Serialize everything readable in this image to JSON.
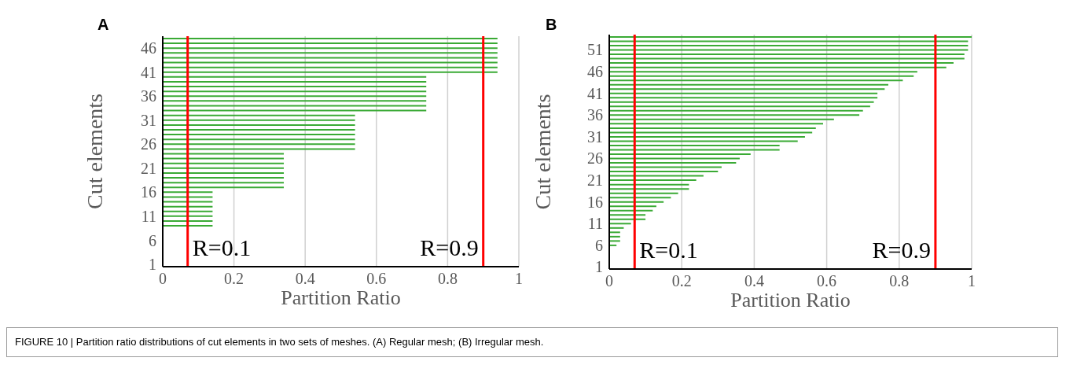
{
  "chart_data": [
    {
      "type": "bar",
      "orientation": "horizontal",
      "title": "A",
      "xlabel": "Partition Ratio",
      "ylabel": "Cut elements",
      "categories": [
        null,
        null,
        "46",
        null,
        null,
        null,
        null,
        "41",
        null,
        null,
        null,
        null,
        "36",
        null,
        null,
        null,
        null,
        "31",
        null,
        null,
        null,
        null,
        "26",
        null,
        null,
        null,
        null,
        "21",
        null,
        null,
        null,
        null,
        "16",
        null,
        null,
        null,
        null,
        "11",
        null,
        null,
        null,
        null,
        "6",
        null,
        null,
        null,
        null,
        "1"
      ],
      "values": [
        0.94,
        0.94,
        0.94,
        0.94,
        0.94,
        0.94,
        0.94,
        0.94,
        0.74,
        0.74,
        0.74,
        0.74,
        0.74,
        0.74,
        0.74,
        0.74,
        0.54,
        0.54,
        0.54,
        0.54,
        0.54,
        0.54,
        0.54,
        0.54,
        0.34,
        0.34,
        0.34,
        0.34,
        0.34,
        0.34,
        0.34,
        0.34,
        0.14,
        0.14,
        0.14,
        0.14,
        0.14,
        0.14,
        0.14,
        0.14,
        0,
        0,
        0,
        0,
        0,
        0,
        0,
        0
      ],
      "color": "#3aaa35",
      "xlim": [
        0,
        1
      ],
      "xticks": [
        0,
        0.2,
        0.4,
        0.6,
        0.8,
        1
      ],
      "grid": "x",
      "legend": false,
      "ref_lines": [
        {
          "axis": "x",
          "value": 0.07,
          "label": "R=0.1",
          "color": "#ff0000"
        },
        {
          "axis": "x",
          "value": 0.9,
          "label": "R=0.9",
          "color": "#ff0000"
        }
      ],
      "annotations": [
        "FIGURE 10 | Partition ratio distributions of cut elements in two sets of meshes. (A) Regular mesh; (B) Irregular mesh."
      ]
    },
    {
      "type": "bar",
      "orientation": "horizontal",
      "title": "B",
      "xlabel": "Partition Ratio",
      "ylabel": "Cut elements",
      "categories": [
        null,
        null,
        null,
        "51",
        null,
        null,
        null,
        null,
        "46",
        null,
        null,
        null,
        null,
        "41",
        null,
        null,
        null,
        null,
        "36",
        null,
        null,
        null,
        null,
        "31",
        null,
        null,
        null,
        null,
        "26",
        null,
        null,
        null,
        null,
        "21",
        null,
        null,
        null,
        null,
        "16",
        null,
        null,
        null,
        null,
        "11",
        null,
        null,
        null,
        null,
        "6",
        null,
        null,
        null,
        null,
        "1"
      ],
      "values": [
        1,
        0.99,
        0.99,
        0.99,
        0.98,
        0.98,
        0.95,
        0.93,
        0.85,
        0.84,
        0.81,
        0.77,
        0.76,
        0.74,
        0.74,
        0.73,
        0.72,
        0.7,
        0.69,
        0.62,
        0.59,
        0.57,
        0.56,
        0.54,
        0.52,
        0.47,
        0.47,
        0.39,
        0.36,
        0.35,
        0.31,
        0.3,
        0.26,
        0.24,
        0.22,
        0.22,
        0.19,
        0.17,
        0.15,
        0.13,
        0.12,
        0.1,
        0.1,
        0.06,
        0.04,
        0.03,
        0.03,
        0.03,
        0.02,
        0,
        0,
        0,
        0,
        0
      ],
      "color": "#3aaa35",
      "xlim": [
        0,
        1
      ],
      "xticks": [
        0,
        0.2,
        0.4,
        0.6,
        0.8,
        1
      ],
      "grid": "x",
      "legend": false,
      "ref_lines": [
        {
          "axis": "x",
          "value": 0.07,
          "label": "R=0.1",
          "color": "#ff0000"
        },
        {
          "axis": "x",
          "value": 0.9,
          "label": "R=0.9",
          "color": "#ff0000"
        }
      ]
    }
  ]
}
